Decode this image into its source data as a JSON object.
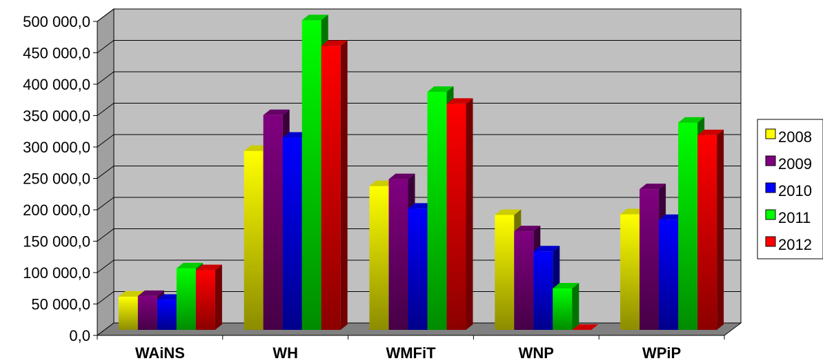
{
  "chart_data": {
    "type": "bar",
    "categories": [
      "WAiNS",
      "WH",
      "WMFiT",
      "WNP",
      "WPiP"
    ],
    "series": [
      {
        "name": "2008",
        "color": "#ffff00",
        "values": [
          53000,
          285000,
          229000,
          183000,
          184000
        ]
      },
      {
        "name": "2009",
        "color": "#800080",
        "values": [
          54000,
          342000,
          240000,
          157000,
          224000
        ]
      },
      {
        "name": "2010",
        "color": "#0000ff",
        "values": [
          48000,
          306000,
          193000,
          125000,
          175000
        ]
      },
      {
        "name": "2011",
        "color": "#00ff00",
        "values": [
          98000,
          493000,
          379000,
          66000,
          330000
        ]
      },
      {
        "name": "2012",
        "color": "#ff0000",
        "values": [
          95000,
          452000,
          360000,
          0,
          310000
        ]
      }
    ],
    "ylim": [
      0,
      500000
    ],
    "yticks": [
      0,
      50000,
      100000,
      150000,
      200000,
      250000,
      300000,
      350000,
      400000,
      450000,
      500000
    ],
    "ytick_labels": [
      "0,0",
      "50 000,0",
      "100 000,0",
      "150 000,0",
      "200 000,0",
      "250 000,0",
      "300 000,0",
      "350 000,0",
      "400 000,0",
      "450 000,0",
      "500 000,0"
    ],
    "legend_position": "right",
    "grid": true,
    "style": "3d-clustered-column",
    "wall_color": "#c0c0c0",
    "floor_color": "#808080"
  }
}
